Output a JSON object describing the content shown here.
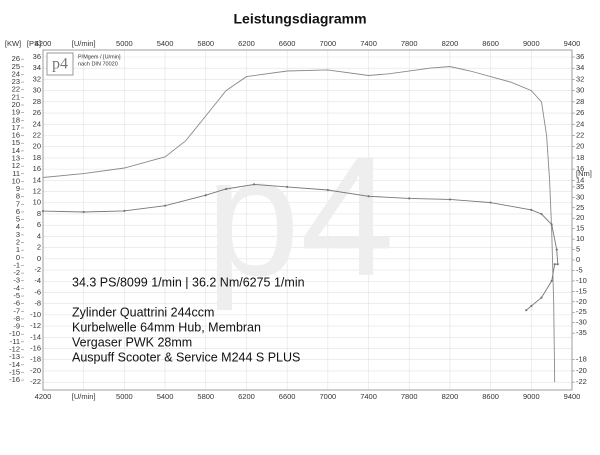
{
  "chart_data": {
    "type": "line",
    "title": "Leistungsdiagramm",
    "logo": "p4",
    "legend_lines": [
      "P/Mgem / [U/min]",
      "nach DIN 70020"
    ],
    "watermark": "p4",
    "summary": "34.3 PS/8099 1/min | 36.2 Nm/6275 1/min",
    "notes": [
      "Zylinder Quattrini 244ccm",
      "Kurbelwelle 64mm Hub, Membran",
      "Vergaser PWK 28mm",
      "Auspuff Scooter & Service M244 S PLUS"
    ],
    "xlim": [
      4200,
      9400
    ],
    "xticks": [
      4200,
      {
        "value": 4600,
        "label": "[U/min]"
      },
      5000,
      5400,
      5800,
      6200,
      6600,
      7000,
      7400,
      7800,
      8200,
      8600,
      9000,
      9400
    ],
    "ylabel": "[PS]",
    "ylim": [
      -23.4,
      37.25
    ],
    "yticks": [
      36,
      34,
      32,
      30,
      28,
      26,
      24,
      22,
      20,
      18,
      16,
      14,
      12,
      10,
      8,
      6,
      4,
      2,
      0,
      -2,
      -4,
      -6,
      -8,
      -10,
      -12,
      -14,
      -16,
      -18,
      -20,
      -22
    ],
    "right_ticks": [
      36,
      34,
      32,
      30,
      28,
      26,
      24,
      22,
      20,
      18,
      16,
      14,
      -18,
      -20,
      -22
    ],
    "kw_label": "[KW]",
    "kw_lim": [
      -17.3,
      27.2
    ],
    "kw_ticks": [
      26,
      25,
      24,
      23,
      22,
      21,
      20,
      19,
      18,
      17,
      16,
      15,
      14,
      13,
      12,
      11,
      10,
      9,
      8,
      7,
      6,
      5,
      4,
      3,
      2,
      1,
      0,
      -1,
      -2,
      -3,
      -4,
      -5,
      -6,
      -7,
      -8,
      -9,
      -10,
      -11,
      -12,
      -13,
      -14,
      -15,
      -16
    ],
    "y2label": "[Nm]",
    "y2lim": [
      -62.2,
      100.5
    ],
    "y2ticks": [
      35,
      30,
      25,
      20,
      15,
      10,
      5,
      0,
      -5,
      -10,
      -15,
      -20,
      -25,
      -30,
      -35
    ],
    "grid": true,
    "series": [
      {
        "name": "PS",
        "color": "#8a8a8a",
        "markers": false,
        "x": [
          4200,
          4600,
          5000,
          5400,
          5600,
          5800,
          6000,
          6200,
          6600,
          7000,
          7400,
          7600,
          8000,
          8200,
          8400,
          8800,
          9000,
          9100,
          9150,
          9180,
          9200,
          9220,
          9230
        ],
        "values": [
          14.5,
          15.2,
          16.2,
          18.2,
          21,
          25.5,
          30,
          32.5,
          33.5,
          33.7,
          32.7,
          33,
          34,
          34.3,
          33.5,
          31.5,
          30,
          28,
          22,
          14,
          5,
          -8,
          -22
        ]
      },
      {
        "name": "Nm",
        "color": "#777777",
        "markers": true,
        "axis": "y2",
        "x": [
          4200,
          4600,
          5000,
          5400,
          5800,
          6000,
          6275,
          6600,
          7000,
          7400,
          7800,
          8200,
          8600,
          9000,
          9100,
          9200,
          9250,
          9260,
          9230,
          9200,
          9100,
          9000,
          8950
        ],
        "values": [
          23.4,
          23,
          23.5,
          26,
          31,
          34,
          36.2,
          35,
          33.5,
          30.5,
          29.5,
          29,
          27.5,
          24,
          22,
          17,
          5,
          -2,
          -2,
          -10,
          -18,
          -22,
          -24
        ]
      }
    ]
  }
}
